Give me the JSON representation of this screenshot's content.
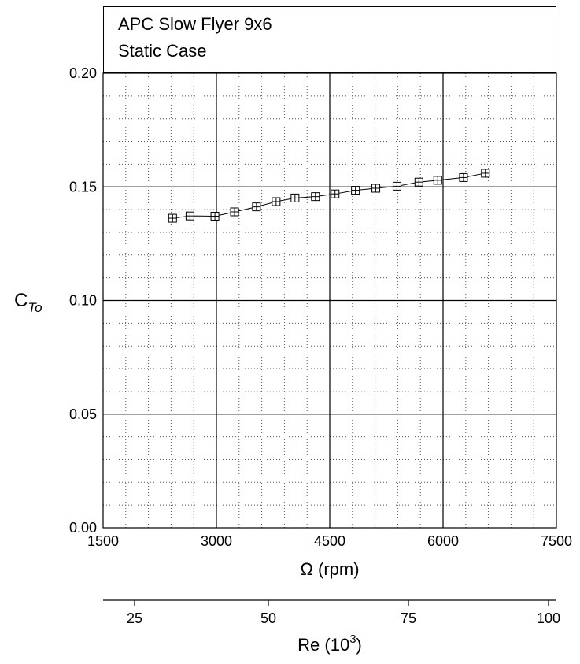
{
  "chart_data": {
    "type": "line",
    "title": [
      "APC Slow Flyer 9x6",
      "Static Case"
    ],
    "xlabel": "Ω (rpm)",
    "ylabel": "C",
    "ylabel_subscript": "To",
    "xlim": [
      1500,
      7500
    ],
    "ylim": [
      0.0,
      0.2
    ],
    "x_ticks": [
      "1500",
      "3000",
      "4500",
      "6000",
      "7500"
    ],
    "y_ticks": [
      "0.00",
      "0.05",
      "0.10",
      "0.15",
      "0.20"
    ],
    "secondary_axis": {
      "label": "Re (10",
      "label_superscript": "3",
      "label_suffix": ")",
      "ticks": [
        "25",
        "50",
        "75",
        "100"
      ]
    },
    "grid": true,
    "series": [
      {
        "marker": "square-plus",
        "x": [
          2420,
          2650,
          2980,
          3240,
          3530,
          3790,
          4040,
          4310,
          4570,
          4840,
          5110,
          5390,
          5680,
          5930,
          6270,
          6560
        ],
        "y": [
          0.1362,
          0.1372,
          0.1371,
          0.139,
          0.1412,
          0.1435,
          0.1451,
          0.1457,
          0.1469,
          0.1485,
          0.1494,
          0.1503,
          0.1521,
          0.1529,
          0.1541,
          0.156
        ]
      }
    ]
  }
}
